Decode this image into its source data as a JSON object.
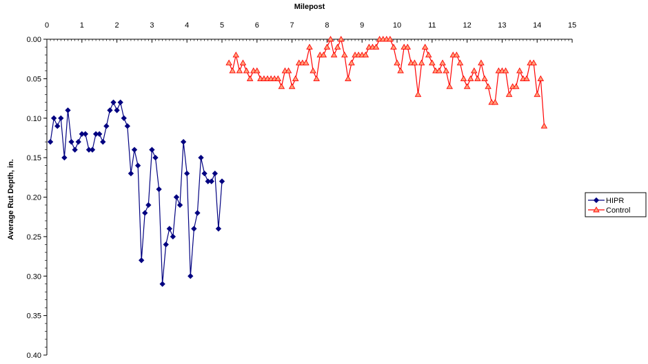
{
  "chart_data": {
    "type": "line",
    "title": "",
    "xlabel": "Milepost",
    "ylabel": "Average Rut Depth, in.",
    "xlim": [
      0,
      15
    ],
    "ylim": [
      0,
      0.4
    ],
    "y_reversed": true,
    "x_axis_position": "top",
    "x_ticks": [
      "0",
      "1",
      "2",
      "3",
      "4",
      "5",
      "6",
      "7",
      "8",
      "9",
      "10",
      "11",
      "12",
      "13",
      "14",
      "15"
    ],
    "y_ticks": [
      "0.00",
      "0.05",
      "0.10",
      "0.15",
      "0.20",
      "0.25",
      "0.30",
      "0.35",
      "0.40"
    ],
    "grid": false,
    "legend_position": "right",
    "series": [
      {
        "name": "HIPR",
        "color": "#000080",
        "marker": "diamond",
        "x": [
          0.1,
          0.2,
          0.3,
          0.4,
          0.5,
          0.6,
          0.7,
          0.8,
          0.9,
          1.0,
          1.1,
          1.2,
          1.3,
          1.4,
          1.5,
          1.6,
          1.7,
          1.8,
          1.9,
          2.0,
          2.1,
          2.2,
          2.3,
          2.4,
          2.5,
          2.6,
          2.7,
          2.8,
          2.9,
          3.0,
          3.1,
          3.2,
          3.3,
          3.4,
          3.5,
          3.6,
          3.7,
          3.8,
          3.9,
          4.0,
          4.1,
          4.2,
          4.3,
          4.4,
          4.5,
          4.6,
          4.7,
          4.8,
          4.9,
          5.0
        ],
        "y": [
          0.13,
          0.1,
          0.11,
          0.1,
          0.15,
          0.09,
          0.13,
          0.14,
          0.13,
          0.12,
          0.12,
          0.14,
          0.14,
          0.12,
          0.12,
          0.13,
          0.11,
          0.09,
          0.08,
          0.09,
          0.08,
          0.1,
          0.11,
          0.17,
          0.14,
          0.16,
          0.28,
          0.22,
          0.21,
          0.14,
          0.15,
          0.19,
          0.31,
          0.26,
          0.24,
          0.25,
          0.2,
          0.21,
          0.13,
          0.17,
          0.3,
          0.24,
          0.22,
          0.15,
          0.17,
          0.18,
          0.18,
          0.17,
          0.24,
          0.18
        ]
      },
      {
        "name": "Control",
        "color": "#ff0000",
        "fill": "#ffa07a",
        "marker": "triangle",
        "x": [
          5.2,
          5.3,
          5.4,
          5.5,
          5.6,
          5.7,
          5.8,
          5.9,
          6.0,
          6.1,
          6.2,
          6.3,
          6.4,
          6.5,
          6.6,
          6.7,
          6.8,
          6.9,
          7.0,
          7.1,
          7.2,
          7.3,
          7.4,
          7.5,
          7.6,
          7.7,
          7.8,
          7.9,
          8.0,
          8.1,
          8.2,
          8.3,
          8.4,
          8.5,
          8.6,
          8.7,
          8.8,
          8.9,
          9.0,
          9.1,
          9.2,
          9.3,
          9.4,
          9.5,
          9.6,
          9.7,
          9.8,
          9.9,
          10.0,
          10.1,
          10.2,
          10.3,
          10.4,
          10.5,
          10.6,
          10.7,
          10.8,
          10.9,
          11.0,
          11.1,
          11.2,
          11.3,
          11.4,
          11.5,
          11.6,
          11.7,
          11.8,
          11.9,
          12.0,
          12.1,
          12.2,
          12.3,
          12.4,
          12.5,
          12.6,
          12.7,
          12.8,
          12.9,
          13.0,
          13.1,
          13.2,
          13.3,
          13.4,
          13.5,
          13.6,
          13.7,
          13.8,
          13.9,
          14.0,
          14.1,
          14.2
        ],
        "y": [
          0.03,
          0.04,
          0.02,
          0.04,
          0.03,
          0.04,
          0.05,
          0.04,
          0.04,
          0.05,
          0.05,
          0.05,
          0.05,
          0.05,
          0.05,
          0.06,
          0.04,
          0.04,
          0.06,
          0.05,
          0.03,
          0.03,
          0.03,
          0.01,
          0.04,
          0.05,
          0.02,
          0.02,
          0.01,
          0.0,
          0.02,
          0.01,
          0.0,
          0.02,
          0.05,
          0.03,
          0.02,
          0.02,
          0.02,
          0.02,
          0.01,
          0.01,
          0.01,
          0.0,
          0.0,
          0.0,
          0.0,
          0.01,
          0.03,
          0.04,
          0.01,
          0.01,
          0.03,
          0.03,
          0.07,
          0.03,
          0.01,
          0.02,
          0.03,
          0.04,
          0.04,
          0.03,
          0.04,
          0.06,
          0.02,
          0.02,
          0.03,
          0.05,
          0.06,
          0.05,
          0.04,
          0.05,
          0.03,
          0.05,
          0.06,
          0.08,
          0.08,
          0.04,
          0.04,
          0.04,
          0.07,
          0.06,
          0.06,
          0.04,
          0.05,
          0.05,
          0.03,
          0.03,
          0.07,
          0.05,
          0.11
        ]
      }
    ]
  }
}
